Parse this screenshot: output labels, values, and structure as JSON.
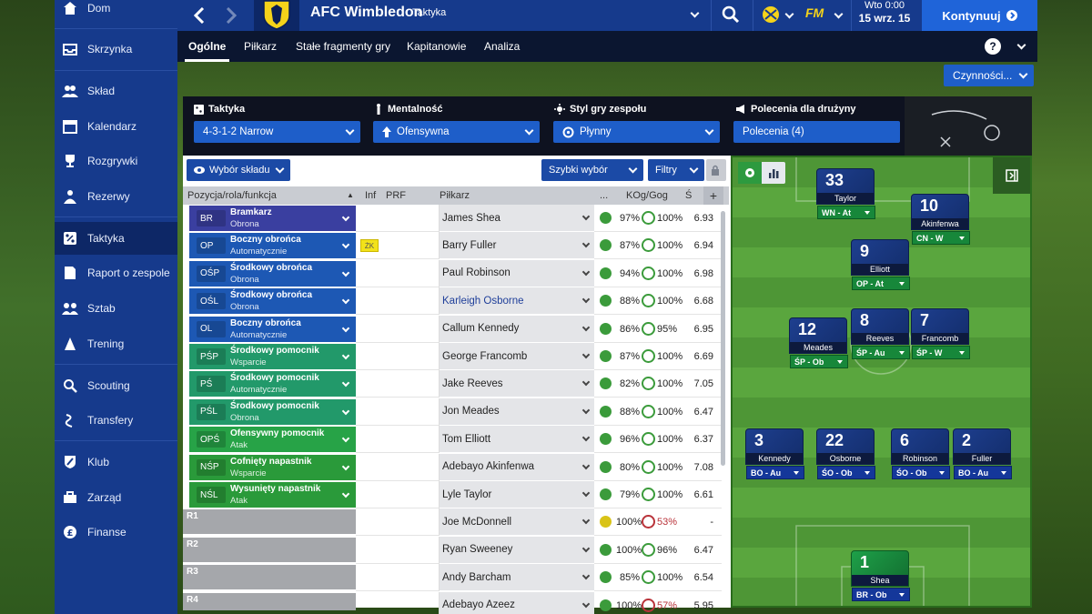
{
  "topbar": {
    "club": "AFC Wimbledon",
    "section": "Taktyka",
    "date_top": "Wto 0:00",
    "date_bottom": "15 wrz. 15",
    "continue": "Kontynuuj",
    "fm": "FM"
  },
  "sidebar": {
    "items": [
      {
        "label": "Dom",
        "icon": "home-icon"
      },
      {
        "label": "Skrzynka",
        "icon": "inbox-icon"
      },
      {
        "label": "Skład",
        "icon": "squad-icon"
      },
      {
        "label": "Kalendarz",
        "icon": "calendar-icon"
      },
      {
        "label": "Rozgrywki",
        "icon": "trophy-icon"
      },
      {
        "label": "Rezerwy",
        "icon": "reserves-icon"
      },
      {
        "label": "Taktyka",
        "icon": "tactics-icon"
      },
      {
        "label": "Raport o zespole",
        "icon": "report-icon"
      },
      {
        "label": "Sztab",
        "icon": "staff-icon"
      },
      {
        "label": "Trening",
        "icon": "training-icon"
      },
      {
        "label": "Scouting",
        "icon": "scouting-icon"
      },
      {
        "label": "Transfery",
        "icon": "transfers-icon"
      },
      {
        "label": "Klub",
        "icon": "club-icon"
      },
      {
        "label": "Zarząd",
        "icon": "board-icon"
      },
      {
        "label": "Finanse",
        "icon": "finance-icon"
      }
    ]
  },
  "subnav": {
    "tabs": [
      "Ogólne",
      "Piłkarz",
      "Stałe fragmenty gry",
      "Kapitanowie",
      "Analiza"
    ],
    "help": "?"
  },
  "actions": "Czynności...",
  "tactics": {
    "tactic_label": "Taktyka",
    "tactic_value": "4-3-1-2 Narrow",
    "mentality_label": "Mentalność",
    "mentality_value": "Ofensywna",
    "style_label": "Styl gry zespołu",
    "style_value": "Płynny",
    "instructions_label": "Polecenia dla drużyny",
    "instructions_value": "Polecenia (4)"
  },
  "toolbar": {
    "selection": "Wybór składu",
    "quick": "Szybki wybór",
    "filters": "Filtry"
  },
  "columns": {
    "position": "Pozycja/rola/funkcja",
    "inf": "Inf",
    "prf": "PRF",
    "player": "Piłkarz",
    "dots": "...",
    "kog": "KOg/Gog",
    "s": "Ś",
    "plus": "+"
  },
  "rows": [
    {
      "code": "BR",
      "role": "Bramkarz",
      "duty": "Obrona",
      "player": "James Shea",
      "kog": "97%",
      "gog": "100%",
      "rating": "6.93",
      "zk": ""
    },
    {
      "code": "OP",
      "role": "Boczny obrońca",
      "duty": "Automatycznie",
      "player": "Barry Fuller",
      "kog": "87%",
      "gog": "100%",
      "rating": "6.94",
      "zk": "ŻK"
    },
    {
      "code": "OŚP",
      "role": "Środkowy obrońca",
      "duty": "Obrona",
      "player": "Paul Robinson",
      "kog": "94%",
      "gog": "100%",
      "rating": "6.98",
      "zk": ""
    },
    {
      "code": "OŚL",
      "role": "Środkowy obrońca",
      "duty": "Obrona",
      "player": "Karleigh Osborne",
      "kog": "88%",
      "gog": "100%",
      "rating": "6.68",
      "zk": ""
    },
    {
      "code": "OL",
      "role": "Boczny obrońca",
      "duty": "Automatycznie",
      "player": "Callum Kennedy",
      "kog": "86%",
      "gog": "95%",
      "rating": "6.95",
      "zk": ""
    },
    {
      "code": "PŚP",
      "role": "Środkowy pomocnik",
      "duty": "Wsparcie",
      "player": "George Francomb",
      "kog": "87%",
      "gog": "100%",
      "rating": "6.69",
      "zk": ""
    },
    {
      "code": "PŚ",
      "role": "Środkowy pomocnik",
      "duty": "Automatycznie",
      "player": "Jake Reeves",
      "kog": "82%",
      "gog": "100%",
      "rating": "7.05",
      "zk": ""
    },
    {
      "code": "PŚL",
      "role": "Środkowy pomocnik",
      "duty": "Obrona",
      "player": "Jon Meades",
      "kog": "88%",
      "gog": "100%",
      "rating": "6.47",
      "zk": ""
    },
    {
      "code": "OPŚ",
      "role": "Ofensywny pomocnik",
      "duty": "Atak",
      "player": "Tom Elliott",
      "kog": "96%",
      "gog": "100%",
      "rating": "6.37",
      "zk": ""
    },
    {
      "code": "NŚP",
      "role": "Cofnięty napastnik",
      "duty": "Wsparcie",
      "player": "Adebayo Akinfenwa",
      "kog": "80%",
      "gog": "100%",
      "rating": "7.08",
      "zk": ""
    },
    {
      "code": "NŚL",
      "role": "Wysunięty napastnik",
      "duty": "Atak",
      "player": "Lyle Taylor",
      "kog": "79%",
      "gog": "100%",
      "rating": "6.61",
      "zk": ""
    },
    {
      "code": "R1",
      "role": "",
      "duty": "",
      "player": "Joe McDonnell",
      "kog": "100%",
      "gog": "53%",
      "rating": "-",
      "zk": ""
    },
    {
      "code": "R2",
      "role": "",
      "duty": "",
      "player": "Ryan Sweeney",
      "kog": "100%",
      "gog": "96%",
      "rating": "6.47",
      "zk": ""
    },
    {
      "code": "R3",
      "role": "",
      "duty": "",
      "player": "Andy Barcham",
      "kog": "85%",
      "gog": "100%",
      "rating": "6.54",
      "zk": ""
    },
    {
      "code": "R4",
      "role": "",
      "duty": "",
      "player": "Adebayo Azeez",
      "kog": "100%",
      "gog": "57%",
      "rating": "5.95",
      "zk": ""
    }
  ],
  "pitch": [
    {
      "num": "33",
      "name": "Taylor",
      "role": "WN - At",
      "cls": "striker"
    },
    {
      "num": "10",
      "name": "Akinfenwa",
      "role": "CN - W",
      "cls": "striker"
    },
    {
      "num": "9",
      "name": "Elliott",
      "role": "OP - At",
      "cls": "striker"
    },
    {
      "num": "12",
      "name": "Meades",
      "role": "ŚP - Ob",
      "cls": "mid"
    },
    {
      "num": "8",
      "name": "Reeves",
      "role": "ŚP - Au",
      "cls": "mid"
    },
    {
      "num": "7",
      "name": "Francomb",
      "role": "ŚP - W",
      "cls": "mid"
    },
    {
      "num": "3",
      "name": "Kennedy",
      "role": "BO - Au",
      "cls": ""
    },
    {
      "num": "22",
      "name": "Osborne",
      "role": "ŚO - Ob",
      "cls": ""
    },
    {
      "num": "6",
      "name": "Robinson",
      "role": "ŚO - Ob",
      "cls": ""
    },
    {
      "num": "2",
      "name": "Fuller",
      "role": "BO - Au",
      "cls": ""
    },
    {
      "num": "1",
      "name": "Shea",
      "role": "BR - Ob",
      "cls": "gk"
    }
  ]
}
